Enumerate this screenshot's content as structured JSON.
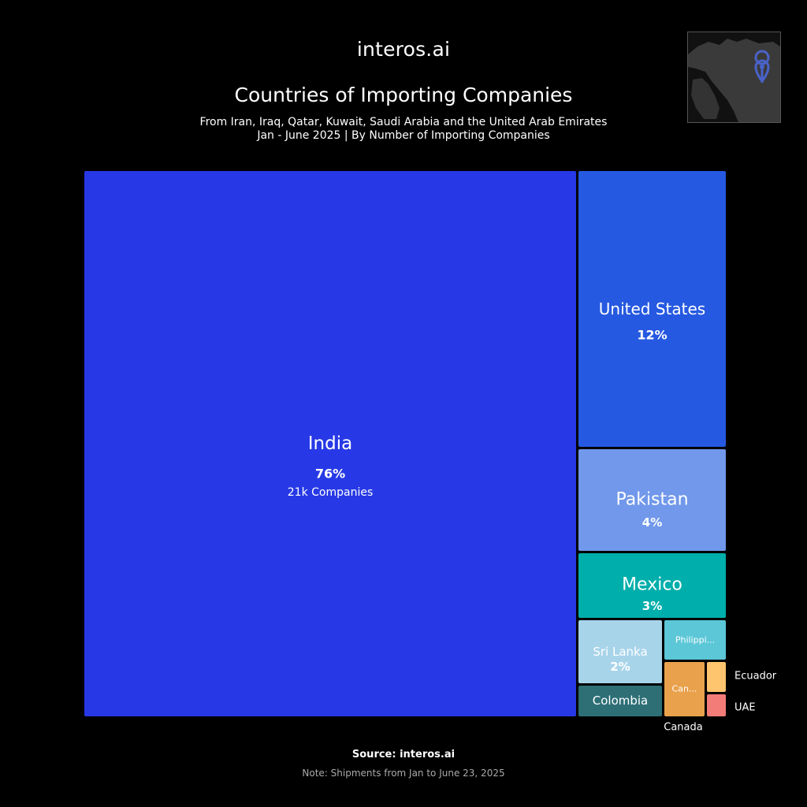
{
  "header": {
    "logo": "interos.ai",
    "title": "Countries of Importing Companies",
    "subtitle_line1": "From Iran, Iraq, Qatar, Kuwait, Saudi Arabia and the United Arab Emirates",
    "subtitle_line2": "Jan - June 2025 | By Number of Importing Companies"
  },
  "map": {
    "icon": "location-pin-icon",
    "pin_color": "#4a63c9"
  },
  "chart_data": {
    "type": "treemap",
    "items": [
      {
        "name": "India",
        "label": "India",
        "pct_label": "76%",
        "extra_label": "21k Companies",
        "share": 76,
        "color": "#2739e6"
      },
      {
        "name": "United States",
        "label": "United States",
        "pct_label": "12%",
        "share": 12,
        "color": "#2659e1"
      },
      {
        "name": "Pakistan",
        "label": "Pakistan",
        "pct_label": "4%",
        "share": 4,
        "color": "#7198ea"
      },
      {
        "name": "Mexico",
        "label": "Mexico",
        "pct_label": "3%",
        "share": 3,
        "color": "#00aeab"
      },
      {
        "name": "Sri Lanka",
        "label": "Sri Lanka",
        "pct_label": "2%",
        "share": 2,
        "color": "#a8d4ea"
      },
      {
        "name": "Philippines",
        "label": "Philippi...",
        "share": 1,
        "color": "#5cc7d7"
      },
      {
        "name": "Colombia",
        "label": "Colombia",
        "share": 1,
        "color": "#2e6f76"
      },
      {
        "name": "Canada",
        "label": "Can...",
        "outside_label": "Canada",
        "share": 1,
        "color": "#e9a14c"
      },
      {
        "name": "Ecuador",
        "outside_label": "Ecuador",
        "share": 0.4,
        "color": "#ffc46e"
      },
      {
        "name": "UAE",
        "outside_label": "UAE",
        "share": 0.3,
        "color": "#f47c78"
      }
    ]
  },
  "footer": {
    "source": "Source: interos.ai",
    "note": "Note: Shipments from Jan to June 23, 2025"
  }
}
